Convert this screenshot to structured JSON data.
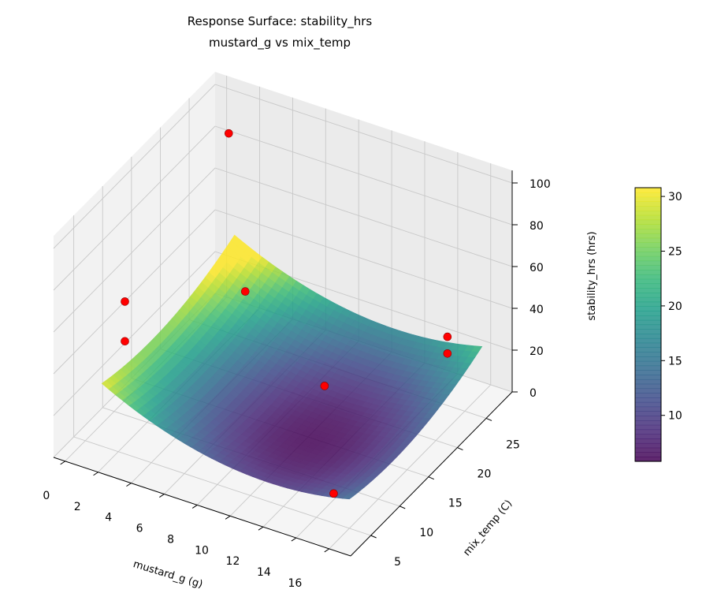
{
  "chart_data": {
    "type": "surface3d",
    "title": "Response Surface: stability_hrs",
    "subtitle": "mustard_g vs mix_temp",
    "xlabel": "mustard_g (g)",
    "ylabel": "mix_temp (C)",
    "zlabel": "stability_hrs (hrs)",
    "xlim": [
      -0.7,
      17.3
    ],
    "ylim": [
      1.5,
      29.5
    ],
    "zlim": [
      0,
      106
    ],
    "x_ticks": [
      0,
      2,
      4,
      6,
      8,
      10,
      12,
      14,
      16
    ],
    "y_ticks": [
      5,
      10,
      15,
      20,
      25
    ],
    "z_ticks": [
      0,
      20,
      40,
      60,
      80,
      100
    ],
    "grid": true,
    "colormap": "viridis",
    "surface_alpha": 0.85,
    "surface": {
      "x_range": [
        1,
        16
      ],
      "y_range": [
        5,
        28
      ],
      "model": "z = 6 + 0.204*(x-11)^2 + 0.049*(y-13)^2 + 0.0058*(x-11)*(y-13)"
    },
    "colorbar": {
      "min": 5.8,
      "max": 30.8,
      "ticks": [
        10,
        15,
        20,
        25,
        30
      ]
    },
    "points_color": "#ff0000",
    "points": [
      {
        "x": 1,
        "y": 27,
        "z": 88
      },
      {
        "x": 1,
        "y": 9,
        "z": 58
      },
      {
        "x": 1,
        "y": 9,
        "z": 39
      },
      {
        "x": 2,
        "y": 27,
        "z": 15
      },
      {
        "x": 11,
        "y": 15,
        "z": 27
      },
      {
        "x": 14,
        "y": 8,
        "z": 3
      },
      {
        "x": 16,
        "y": 22,
        "z": 44
      },
      {
        "x": 16,
        "y": 22,
        "z": 36
      }
    ]
  }
}
